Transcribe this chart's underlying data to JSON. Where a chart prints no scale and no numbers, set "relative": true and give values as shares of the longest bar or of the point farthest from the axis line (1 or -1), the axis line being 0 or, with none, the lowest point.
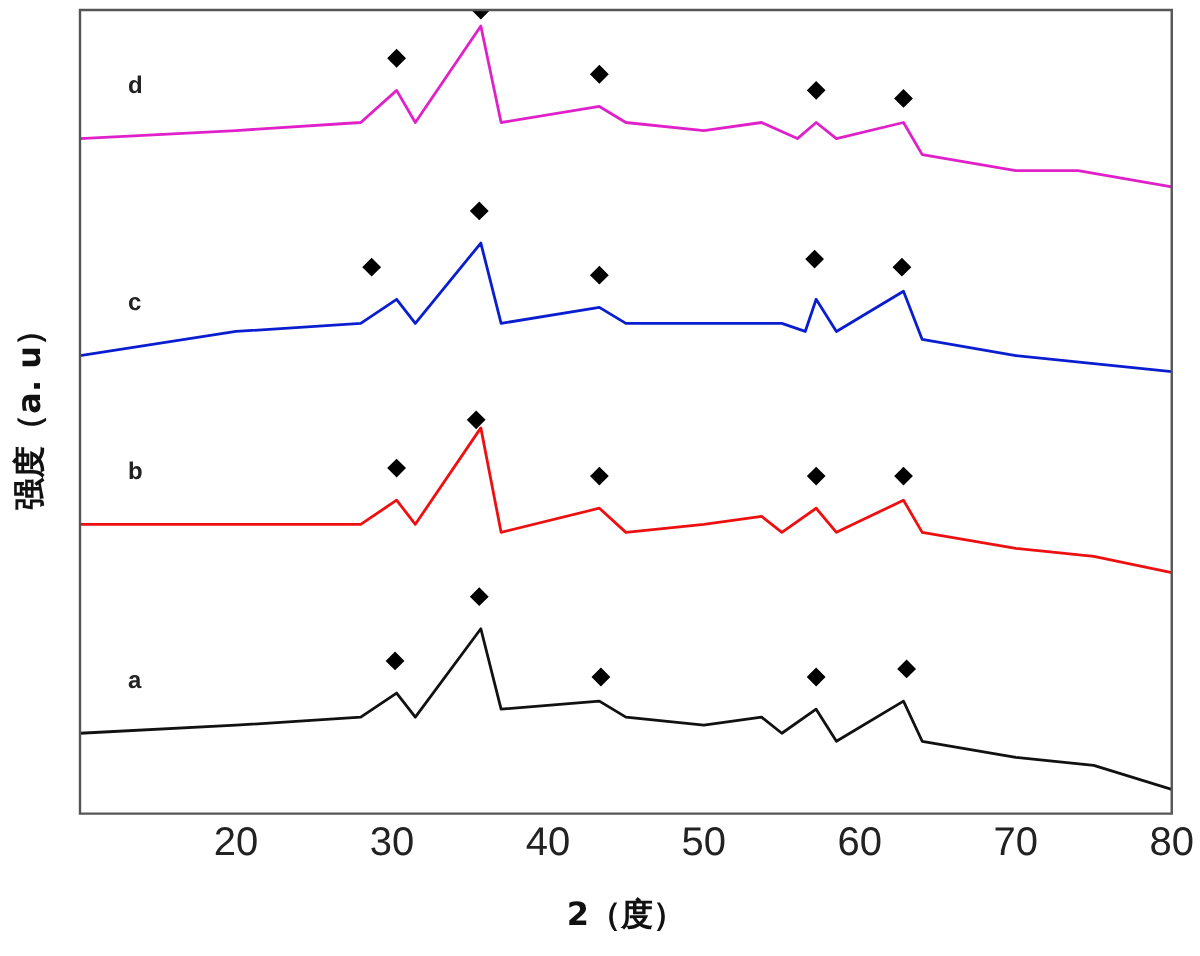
{
  "chart_data": {
    "type": "line",
    "relative": true,
    "xlabel": "2（度）",
    "ylabel": "强度（a. u）",
    "xlim": [
      10,
      80
    ],
    "xticks": [
      20,
      30,
      40,
      50,
      60,
      70,
      80
    ],
    "grid": false,
    "legend": false,
    "marker": "none",
    "series": [
      {
        "name": "d",
        "color": "#e020c8",
        "x": [
          10,
          20,
          28,
          30.3,
          31.5,
          35.7,
          37,
          43.3,
          45,
          50,
          53.7,
          56,
          57.2,
          58.5,
          62.8,
          64,
          70,
          74,
          80
        ],
        "values": [
          0.84,
          0.85,
          0.86,
          0.9,
          0.86,
          0.98,
          0.86,
          0.88,
          0.86,
          0.85,
          0.86,
          0.84,
          0.86,
          0.84,
          0.86,
          0.82,
          0.8,
          0.8,
          0.78
        ]
      },
      {
        "name": "c",
        "color": "#0a1ed0",
        "x": [
          10,
          20,
          28,
          30.3,
          31.5,
          35.7,
          37,
          43.3,
          45,
          50,
          55,
          56.5,
          57.2,
          58.5,
          62.8,
          64,
          70,
          75,
          80
        ],
        "values": [
          0.57,
          0.6,
          0.61,
          0.64,
          0.61,
          0.71,
          0.61,
          0.63,
          0.61,
          0.61,
          0.61,
          0.6,
          0.64,
          0.6,
          0.65,
          0.59,
          0.57,
          0.56,
          0.55
        ]
      },
      {
        "name": "b",
        "color": "#ee1010",
        "x": [
          10,
          20,
          28,
          30.3,
          31.5,
          35.7,
          37,
          43.3,
          45,
          50,
          53.7,
          55,
          57.2,
          58.5,
          62.8,
          64,
          70,
          75,
          80
        ],
        "values": [
          0.36,
          0.36,
          0.36,
          0.39,
          0.36,
          0.48,
          0.35,
          0.38,
          0.35,
          0.36,
          0.37,
          0.35,
          0.38,
          0.35,
          0.39,
          0.35,
          0.33,
          0.32,
          0.3
        ]
      },
      {
        "name": "a",
        "color": "#111111",
        "x": [
          10,
          20,
          28,
          30.3,
          31.5,
          35.7,
          37,
          43.3,
          45,
          50,
          53.7,
          55,
          57.2,
          58.5,
          62.8,
          64,
          70,
          75,
          80
        ],
        "values": [
          0.1,
          0.11,
          0.12,
          0.15,
          0.12,
          0.23,
          0.13,
          0.14,
          0.12,
          0.11,
          0.12,
          0.1,
          0.13,
          0.09,
          0.14,
          0.09,
          0.07,
          0.06,
          0.03
        ]
      },
      {
        "type": "scatter",
        "marker": "diamond",
        "color": "#000000",
        "x": [
          30.3,
          35.7,
          43.3,
          57.2,
          62.8,
          28.7,
          35.6,
          43.3,
          57.1,
          62.7,
          30.3,
          35.4,
          43.3,
          57.2,
          62.8,
          30.2,
          35.6,
          43.4,
          57.2,
          63
        ],
        "values": [
          0.94,
          1,
          0.92,
          0.9,
          0.89,
          0.68,
          0.75,
          0.67,
          0.69,
          0.68,
          0.43,
          0.49,
          0.42,
          0.42,
          0.42,
          0.19,
          0.27,
          0.17,
          0.17,
          0.18
        ]
      }
    ]
  }
}
